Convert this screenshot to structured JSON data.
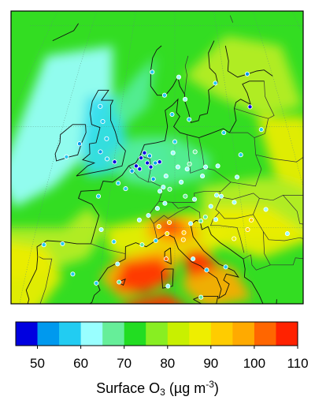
{
  "colorbar": {
    "colors": [
      "#0000e0",
      "#0099ee",
      "#22ccf2",
      "#99ffff",
      "#66ee99",
      "#22dd22",
      "#88ee22",
      "#c8f000",
      "#eeee00",
      "#ffcc00",
      "#ffaa00",
      "#ff6600",
      "#ff2200"
    ],
    "ticks": [
      "50",
      "60",
      "70",
      "80",
      "90",
      "100",
      "110"
    ],
    "title_prefix": "Surface O",
    "title_sub": "3",
    "title_mid": " (µg m",
    "title_sup": "-3",
    "title_suffix": ")"
  },
  "map": {
    "background_color": "#33dd22",
    "region_colors": {
      "atlantic_cool": "#99ffff",
      "cyan": "#33ddee",
      "mint": "#55ee99",
      "yellow_green": "#bbee22",
      "yellow": "#eeee00",
      "orange": "#ffaa00",
      "red": "#ff3300"
    },
    "stations": [
      {
        "lon": -3.0,
        "lat": 55.5,
        "c": "#22ccf2"
      },
      {
        "lon": -1.8,
        "lat": 53.8,
        "c": "#22ccf2"
      },
      {
        "lon": -2.5,
        "lat": 52.5,
        "c": "#0099ee"
      },
      {
        "lon": -1.2,
        "lat": 51.8,
        "c": "#22ccf2"
      },
      {
        "lon": 0.1,
        "lat": 51.5,
        "c": "#0000e0"
      },
      {
        "lon": -4.0,
        "lat": 57.0,
        "c": "#22ccf2"
      },
      {
        "lon": -6.3,
        "lat": 53.3,
        "c": "#0099ee"
      },
      {
        "lon": -8.0,
        "lat": 52.0,
        "c": "#22ccf2"
      },
      {
        "lon": 4.4,
        "lat": 51.9,
        "c": "#0000e0"
      },
      {
        "lon": 4.9,
        "lat": 52.4,
        "c": "#0000e0"
      },
      {
        "lon": 5.5,
        "lat": 51.4,
        "c": "#0000e0"
      },
      {
        "lon": 4.3,
        "lat": 50.8,
        "c": "#0000e0"
      },
      {
        "lon": 6.1,
        "lat": 51.0,
        "c": "#0000e0"
      },
      {
        "lon": 6.8,
        "lat": 51.4,
        "c": "#0099ee"
      },
      {
        "lon": 7.5,
        "lat": 51.5,
        "c": "#0000e0"
      },
      {
        "lon": 6.6,
        "lat": 49.8,
        "c": "#0099ee"
      },
      {
        "lon": 5.8,
        "lat": 52.1,
        "c": "#0099ee"
      },
      {
        "lon": 3.7,
        "lat": 51.1,
        "c": "#0000e0"
      },
      {
        "lon": 8.6,
        "lat": 50.1,
        "c": "#99ffff"
      },
      {
        "lon": 9.2,
        "lat": 48.8,
        "c": "#66ee99"
      },
      {
        "lon": 10.0,
        "lat": 53.5,
        "c": "#22ccf2"
      },
      {
        "lon": 13.4,
        "lat": 52.5,
        "c": "#66ee99"
      },
      {
        "lon": 11.6,
        "lat": 48.1,
        "c": "#66ee99"
      },
      {
        "lon": 12.4,
        "lat": 51.3,
        "c": "#66ee99"
      },
      {
        "lon": 9.7,
        "lat": 52.4,
        "c": "#99ffff"
      },
      {
        "lon": 11.0,
        "lat": 49.5,
        "c": "#99ffff"
      },
      {
        "lon": 8.2,
        "lat": 49.0,
        "c": "#99ffff"
      },
      {
        "lon": 10.5,
        "lat": 51.0,
        "c": "#99ffff"
      },
      {
        "lon": 14.4,
        "lat": 50.1,
        "c": "#99ffff"
      },
      {
        "lon": 16.4,
        "lat": 48.2,
        "c": "#99ffff"
      },
      {
        "lon": 15.4,
        "lat": 47.1,
        "c": "#99ffff"
      },
      {
        "lon": 13.0,
        "lat": 47.8,
        "c": "#99ffff"
      },
      {
        "lon": 17.1,
        "lat": 48.1,
        "c": "#99ffff"
      },
      {
        "lon": 19.0,
        "lat": 47.5,
        "c": "#99ffff"
      },
      {
        "lon": 21.0,
        "lat": 52.2,
        "c": "#22ccf2"
      },
      {
        "lon": 19.9,
        "lat": 50.0,
        "c": "#99ffff"
      },
      {
        "lon": 18.6,
        "lat": 54.4,
        "c": "#22ccf2"
      },
      {
        "lon": 17.0,
        "lat": 51.1,
        "c": "#99ffff"
      },
      {
        "lon": 15.0,
        "lat": 51.0,
        "c": "#99ffff"
      },
      {
        "lon": 12.0,
        "lat": 50.8,
        "c": "#99ffff"
      },
      {
        "lon": 7.7,
        "lat": 48.6,
        "c": "#99ffff"
      },
      {
        "lon": 2.35,
        "lat": 48.85,
        "c": "#22ccf2"
      },
      {
        "lon": 1.1,
        "lat": 49.4,
        "c": "#22ccf2"
      },
      {
        "lon": 3.1,
        "lat": 50.6,
        "c": "#0099ee"
      },
      {
        "lon": -1.7,
        "lat": 48.1,
        "c": "#22ccf2"
      },
      {
        "lon": 4.8,
        "lat": 45.75,
        "c": "#99ffff"
      },
      {
        "lon": 5.4,
        "lat": 43.3,
        "c": "#66ee99"
      },
      {
        "lon": 7.3,
        "lat": 43.7,
        "c": "#22ccf2"
      },
      {
        "lon": 6.1,
        "lat": 46.2,
        "c": "#99ffff"
      },
      {
        "lon": 8.5,
        "lat": 47.4,
        "c": "#99ffff"
      },
      {
        "lon": 7.4,
        "lat": 46.9,
        "c": "#99ffff"
      },
      {
        "lon": 9.2,
        "lat": 45.5,
        "c": "#ffcc00"
      },
      {
        "lon": 7.7,
        "lat": 45.1,
        "c": "#eeee00"
      },
      {
        "lon": 11.3,
        "lat": 44.5,
        "c": "#ffcc00"
      },
      {
        "lon": 12.3,
        "lat": 45.4,
        "c": "#99ffff"
      },
      {
        "lon": 11.2,
        "lat": 43.8,
        "c": "#ffcc00"
      },
      {
        "lon": 12.5,
        "lat": 41.9,
        "c": "#99ffff"
      },
      {
        "lon": 14.3,
        "lat": 40.8,
        "c": "#22ccf2"
      },
      {
        "lon": 8.9,
        "lat": 44.4,
        "c": "#eeee00"
      },
      {
        "lon": 14.5,
        "lat": 46.05,
        "c": "#66ee99"
      },
      {
        "lon": 16.0,
        "lat": 45.8,
        "c": "#99ffff"
      },
      {
        "lon": 20.5,
        "lat": 44.8,
        "c": "#ffcc00"
      },
      {
        "lon": -3.7,
        "lat": 40.4,
        "c": "#22ccf2"
      },
      {
        "lon": -0.4,
        "lat": 39.5,
        "c": "#22ccf2"
      },
      {
        "lon": 2.2,
        "lat": 41.4,
        "c": "#99ffff"
      },
      {
        "lon": -8.4,
        "lat": 43.3,
        "c": "#22ccf2"
      },
      {
        "lon": -5.8,
        "lat": 43.4,
        "c": "#22ccf2"
      },
      {
        "lon": 1.4,
        "lat": 43.6,
        "c": "#22ccf2"
      },
      {
        "lon": -0.6,
        "lat": 44.8,
        "c": "#99ffff"
      },
      {
        "lon": 10.8,
        "lat": 59.9,
        "c": "#99ffff"
      },
      {
        "lon": 12.6,
        "lat": 55.7,
        "c": "#22ccf2"
      },
      {
        "lon": 18.1,
        "lat": 59.3,
        "c": "#22ccf2"
      },
      {
        "lon": 11.97,
        "lat": 57.7,
        "c": "#99ffff"
      },
      {
        "lon": 24.9,
        "lat": 60.2,
        "c": "#0099ee"
      },
      {
        "lon": 24.1,
        "lat": 56.95,
        "c": "#0000e0"
      },
      {
        "lon": 25.3,
        "lat": 54.7,
        "c": "#22ccf2"
      },
      {
        "lon": 9.5,
        "lat": 56.2,
        "c": "#22ccf2"
      },
      {
        "lon": 8.0,
        "lat": 58.1,
        "c": "#22ccf2"
      },
      {
        "lon": 5.3,
        "lat": 60.4,
        "c": "#22ccf2"
      },
      {
        "lon": 26.1,
        "lat": 44.4,
        "c": "#99ffff"
      },
      {
        "lon": 23.6,
        "lat": 46.8,
        "c": "#99ffff"
      },
      {
        "lon": 21.2,
        "lat": 45.75,
        "c": "#ffcc00"
      },
      {
        "lon": 13.8,
        "lat": 45.65,
        "c": "#66ee99"
      },
      {
        "lon": 8.8,
        "lat": 41.9,
        "c": "#ff6600"
      },
      {
        "lon": 9.1,
        "lat": 39.2,
        "c": "#99ffff"
      },
      {
        "lon": 13.4,
        "lat": 38.1,
        "c": "#66ee99"
      },
      {
        "lon": 16.9,
        "lat": 41.1,
        "c": "#22ccf2"
      },
      {
        "lon": 18.4,
        "lat": 43.9,
        "c": "#eeee00"
      },
      {
        "lon": 2.6,
        "lat": 39.6,
        "c": "#66ee99"
      },
      {
        "lon": 10.2,
        "lat": 36.8,
        "c": "#0000e0"
      },
      {
        "lon": 3.0,
        "lat": 36.75,
        "c": "#22ccf2"
      }
    ]
  }
}
